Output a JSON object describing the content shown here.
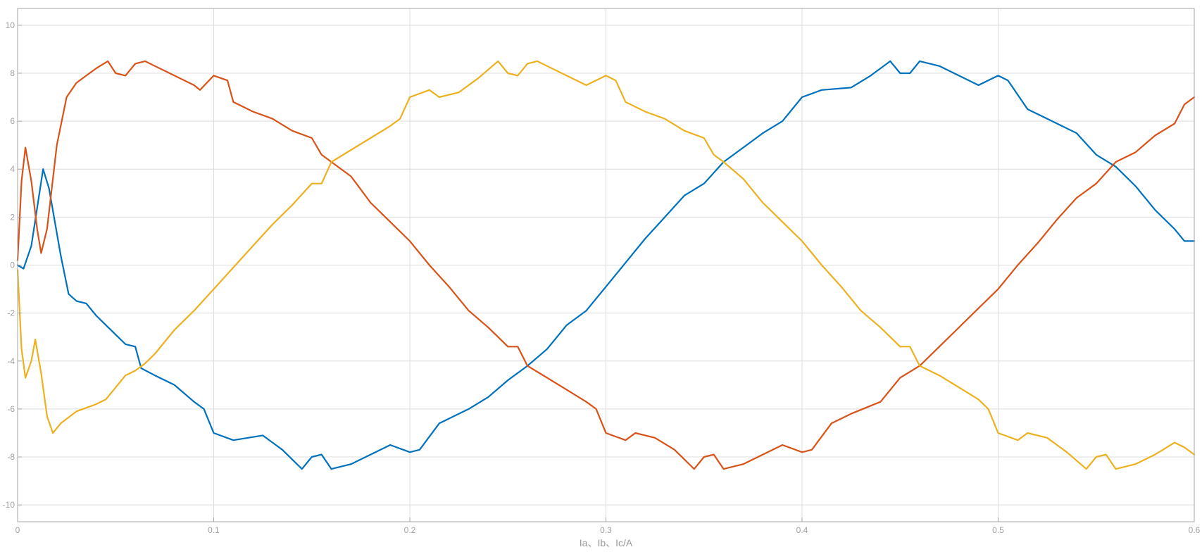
{
  "chart_data": {
    "type": "line",
    "title": "",
    "xlabel": "Ia、Ib、Ic/A",
    "ylabel": "",
    "xlim": [
      0,
      0.6
    ],
    "ylim": [
      -10.7,
      10.7
    ],
    "grid": true,
    "x_ticks": [
      0,
      0.1,
      0.2,
      0.3,
      0.4,
      0.5,
      0.6
    ],
    "x_tick_labels": [
      "0",
      "0.1",
      "0.2",
      "0.3",
      "0.4",
      "0.5",
      "0.6"
    ],
    "y_ticks": [
      -10,
      -8,
      -6,
      -4,
      -2,
      0,
      2,
      4,
      6,
      8,
      10
    ],
    "y_tick_labels": [
      "-10",
      "-8",
      "-6",
      "-4",
      "-2",
      "0",
      "2",
      "4",
      "6",
      "8",
      "10"
    ],
    "series": [
      {
        "color": "#0072BD",
        "points": [
          [
            0,
            0
          ],
          [
            0.003,
            -0.15
          ],
          [
            0.007,
            0.8
          ],
          [
            0.013,
            4.0
          ],
          [
            0.016,
            3.2
          ],
          [
            0.022,
            0.4
          ],
          [
            0.026,
            -1.2
          ],
          [
            0.03,
            -1.5
          ],
          [
            0.035,
            -1.6
          ],
          [
            0.04,
            -2.1
          ],
          [
            0.045,
            -2.5
          ],
          [
            0.05,
            -2.9
          ],
          [
            0.055,
            -3.3
          ],
          [
            0.06,
            -3.4
          ],
          [
            0.063,
            -4.3
          ],
          [
            0.07,
            -4.6
          ],
          [
            0.08,
            -5.0
          ],
          [
            0.09,
            -5.7
          ],
          [
            0.095,
            -6.0
          ],
          [
            0.1,
            -7.0
          ],
          [
            0.11,
            -7.3
          ],
          [
            0.125,
            -7.1
          ],
          [
            0.135,
            -7.7
          ],
          [
            0.145,
            -8.5
          ],
          [
            0.15,
            -8.0
          ],
          [
            0.155,
            -7.9
          ],
          [
            0.16,
            -8.5
          ],
          [
            0.17,
            -8.3
          ],
          [
            0.18,
            -7.9
          ],
          [
            0.19,
            -7.5
          ],
          [
            0.2,
            -7.8
          ],
          [
            0.205,
            -7.7
          ],
          [
            0.215,
            -6.6
          ],
          [
            0.23,
            -6.0
          ],
          [
            0.24,
            -5.5
          ],
          [
            0.25,
            -4.8
          ],
          [
            0.26,
            -4.2
          ],
          [
            0.27,
            -3.5
          ],
          [
            0.28,
            -2.5
          ],
          [
            0.29,
            -1.9
          ],
          [
            0.3,
            -0.9
          ],
          [
            0.31,
            0.1
          ],
          [
            0.32,
            1.1
          ],
          [
            0.33,
            2.0
          ],
          [
            0.34,
            2.9
          ],
          [
            0.35,
            3.4
          ],
          [
            0.36,
            4.3
          ],
          [
            0.37,
            4.9
          ],
          [
            0.38,
            5.5
          ],
          [
            0.39,
            6.0
          ],
          [
            0.4,
            7.0
          ],
          [
            0.41,
            7.3
          ],
          [
            0.425,
            7.4
          ],
          [
            0.435,
            7.9
          ],
          [
            0.445,
            8.5
          ],
          [
            0.45,
            8.0
          ],
          [
            0.455,
            8.0
          ],
          [
            0.46,
            8.5
          ],
          [
            0.47,
            8.3
          ],
          [
            0.48,
            7.9
          ],
          [
            0.49,
            7.5
          ],
          [
            0.5,
            7.9
          ],
          [
            0.505,
            7.7
          ],
          [
            0.515,
            6.5
          ],
          [
            0.53,
            5.9
          ],
          [
            0.54,
            5.5
          ],
          [
            0.55,
            4.6
          ],
          [
            0.56,
            4.1
          ],
          [
            0.57,
            3.3
          ],
          [
            0.58,
            2.3
          ],
          [
            0.59,
            1.5
          ],
          [
            0.595,
            1.0
          ],
          [
            0.6,
            1.0
          ]
        ]
      },
      {
        "color": "#D95319",
        "points": [
          [
            0,
            0.2
          ],
          [
            0.002,
            3.5
          ],
          [
            0.004,
            4.9
          ],
          [
            0.007,
            3.5
          ],
          [
            0.01,
            1.5
          ],
          [
            0.012,
            0.5
          ],
          [
            0.015,
            1.5
          ],
          [
            0.02,
            5.0
          ],
          [
            0.025,
            7.0
          ],
          [
            0.03,
            7.6
          ],
          [
            0.035,
            7.9
          ],
          [
            0.04,
            8.2
          ],
          [
            0.046,
            8.5
          ],
          [
            0.05,
            8.0
          ],
          [
            0.055,
            7.9
          ],
          [
            0.06,
            8.4
          ],
          [
            0.065,
            8.5
          ],
          [
            0.07,
            8.3
          ],
          [
            0.08,
            7.9
          ],
          [
            0.09,
            7.5
          ],
          [
            0.093,
            7.3
          ],
          [
            0.1,
            7.9
          ],
          [
            0.107,
            7.7
          ],
          [
            0.11,
            6.8
          ],
          [
            0.12,
            6.4
          ],
          [
            0.13,
            6.1
          ],
          [
            0.14,
            5.6
          ],
          [
            0.15,
            5.3
          ],
          [
            0.155,
            4.6
          ],
          [
            0.16,
            4.3
          ],
          [
            0.17,
            3.7
          ],
          [
            0.18,
            2.6
          ],
          [
            0.19,
            1.8
          ],
          [
            0.2,
            1.0
          ],
          [
            0.21,
            0
          ],
          [
            0.22,
            -0.9
          ],
          [
            0.23,
            -1.9
          ],
          [
            0.24,
            -2.6
          ],
          [
            0.25,
            -3.4
          ],
          [
            0.255,
            -3.4
          ],
          [
            0.26,
            -4.2
          ],
          [
            0.27,
            -4.7
          ],
          [
            0.28,
            -5.2
          ],
          [
            0.29,
            -5.7
          ],
          [
            0.295,
            -6.0
          ],
          [
            0.3,
            -7.0
          ],
          [
            0.31,
            -7.3
          ],
          [
            0.315,
            -7.0
          ],
          [
            0.325,
            -7.2
          ],
          [
            0.335,
            -7.7
          ],
          [
            0.345,
            -8.5
          ],
          [
            0.35,
            -8.0
          ],
          [
            0.355,
            -7.9
          ],
          [
            0.36,
            -8.5
          ],
          [
            0.37,
            -8.3
          ],
          [
            0.38,
            -7.9
          ],
          [
            0.39,
            -7.5
          ],
          [
            0.4,
            -7.8
          ],
          [
            0.405,
            -7.7
          ],
          [
            0.415,
            -6.6
          ],
          [
            0.425,
            -6.2
          ],
          [
            0.44,
            -5.7
          ],
          [
            0.45,
            -4.7
          ],
          [
            0.46,
            -4.2
          ],
          [
            0.47,
            -3.4
          ],
          [
            0.48,
            -2.6
          ],
          [
            0.49,
            -1.8
          ],
          [
            0.5,
            -1.0
          ],
          [
            0.51,
            0
          ],
          [
            0.52,
            0.9
          ],
          [
            0.53,
            1.9
          ],
          [
            0.54,
            2.8
          ],
          [
            0.55,
            3.4
          ],
          [
            0.56,
            4.3
          ],
          [
            0.57,
            4.7
          ],
          [
            0.58,
            5.4
          ],
          [
            0.59,
            5.9
          ],
          [
            0.595,
            6.7
          ],
          [
            0.6,
            7.0
          ]
        ]
      },
      {
        "color": "#EDB120",
        "points": [
          [
            0,
            -0.2
          ],
          [
            0.002,
            -3.5
          ],
          [
            0.004,
            -4.7
          ],
          [
            0.007,
            -4.0
          ],
          [
            0.009,
            -3.1
          ],
          [
            0.012,
            -4.5
          ],
          [
            0.015,
            -6.3
          ],
          [
            0.018,
            -7.0
          ],
          [
            0.022,
            -6.6
          ],
          [
            0.03,
            -6.1
          ],
          [
            0.04,
            -5.8
          ],
          [
            0.045,
            -5.6
          ],
          [
            0.05,
            -5.1
          ],
          [
            0.055,
            -4.6
          ],
          [
            0.06,
            -4.4
          ],
          [
            0.065,
            -4.1
          ],
          [
            0.07,
            -3.7
          ],
          [
            0.08,
            -2.7
          ],
          [
            0.09,
            -1.9
          ],
          [
            0.1,
            -1.0
          ],
          [
            0.11,
            -0.1
          ],
          [
            0.12,
            0.8
          ],
          [
            0.13,
            1.7
          ],
          [
            0.14,
            2.5
          ],
          [
            0.15,
            3.4
          ],
          [
            0.155,
            3.4
          ],
          [
            0.16,
            4.3
          ],
          [
            0.17,
            4.8
          ],
          [
            0.18,
            5.3
          ],
          [
            0.19,
            5.8
          ],
          [
            0.195,
            6.1
          ],
          [
            0.2,
            7.0
          ],
          [
            0.21,
            7.3
          ],
          [
            0.215,
            7.0
          ],
          [
            0.225,
            7.2
          ],
          [
            0.235,
            7.8
          ],
          [
            0.245,
            8.5
          ],
          [
            0.25,
            8.0
          ],
          [
            0.255,
            7.9
          ],
          [
            0.26,
            8.4
          ],
          [
            0.265,
            8.5
          ],
          [
            0.27,
            8.3
          ],
          [
            0.28,
            7.9
          ],
          [
            0.29,
            7.5
          ],
          [
            0.3,
            7.9
          ],
          [
            0.305,
            7.7
          ],
          [
            0.31,
            6.8
          ],
          [
            0.32,
            6.4
          ],
          [
            0.33,
            6.1
          ],
          [
            0.34,
            5.6
          ],
          [
            0.35,
            5.3
          ],
          [
            0.355,
            4.6
          ],
          [
            0.36,
            4.3
          ],
          [
            0.37,
            3.6
          ],
          [
            0.38,
            2.6
          ],
          [
            0.39,
            1.8
          ],
          [
            0.4,
            1.0
          ],
          [
            0.41,
            0
          ],
          [
            0.42,
            -0.9
          ],
          [
            0.43,
            -1.9
          ],
          [
            0.44,
            -2.6
          ],
          [
            0.45,
            -3.4
          ],
          [
            0.455,
            -3.4
          ],
          [
            0.46,
            -4.2
          ],
          [
            0.47,
            -4.6
          ],
          [
            0.48,
            -5.1
          ],
          [
            0.49,
            -5.6
          ],
          [
            0.495,
            -6.0
          ],
          [
            0.5,
            -7.0
          ],
          [
            0.51,
            -7.3
          ],
          [
            0.515,
            -7.0
          ],
          [
            0.525,
            -7.2
          ],
          [
            0.535,
            -7.8
          ],
          [
            0.545,
            -8.5
          ],
          [
            0.55,
            -8.0
          ],
          [
            0.555,
            -7.9
          ],
          [
            0.56,
            -8.5
          ],
          [
            0.57,
            -8.3
          ],
          [
            0.58,
            -7.9
          ],
          [
            0.59,
            -7.4
          ],
          [
            0.595,
            -7.6
          ],
          [
            0.6,
            -7.9
          ]
        ]
      }
    ]
  }
}
